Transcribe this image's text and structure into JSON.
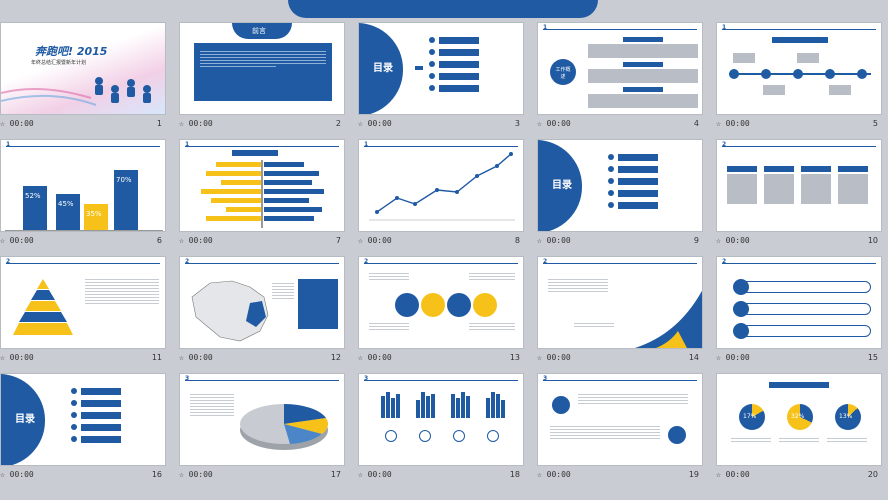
{
  "slides": [
    {
      "time": "00:00",
      "num": "1",
      "title": "奔跑吧! 2015",
      "subtitle": "年终总结汇报暨新年计划"
    },
    {
      "time": "00:00",
      "num": "2",
      "title": "前言"
    },
    {
      "time": "00:00",
      "num": "3",
      "title": "目录"
    },
    {
      "time": "00:00",
      "num": "4",
      "title": "工作概述"
    },
    {
      "time": "00:00",
      "num": "5"
    },
    {
      "time": "00:00",
      "num": "6",
      "bars": [
        "52%",
        "45%",
        "35%",
        "70%"
      ]
    },
    {
      "time": "00:00",
      "num": "7"
    },
    {
      "time": "00:00",
      "num": "8"
    },
    {
      "time": "00:00",
      "num": "9",
      "title": "目录"
    },
    {
      "time": "00:00",
      "num": "10"
    },
    {
      "time": "00:00",
      "num": "11"
    },
    {
      "time": "00:00",
      "num": "12"
    },
    {
      "time": "00:00",
      "num": "13"
    },
    {
      "time": "00:00",
      "num": "14"
    },
    {
      "time": "00:00",
      "num": "15"
    },
    {
      "time": "00:00",
      "num": "16",
      "title": "目录"
    },
    {
      "time": "00:00",
      "num": "17"
    },
    {
      "time": "00:00",
      "num": "18"
    },
    {
      "time": "00:00",
      "num": "19"
    },
    {
      "time": "00:00",
      "num": "20",
      "pies": [
        "17%",
        "32%",
        "13%"
      ]
    }
  ],
  "section_nums": [
    "1",
    "1",
    "1",
    "1",
    "1",
    "2",
    "2",
    "2",
    "2",
    "2",
    "2",
    "3",
    "3",
    "3",
    "3"
  ],
  "colors": {
    "primary": "#1f5aa3",
    "accent": "#f6c21a",
    "background": "#c9cdd3"
  }
}
